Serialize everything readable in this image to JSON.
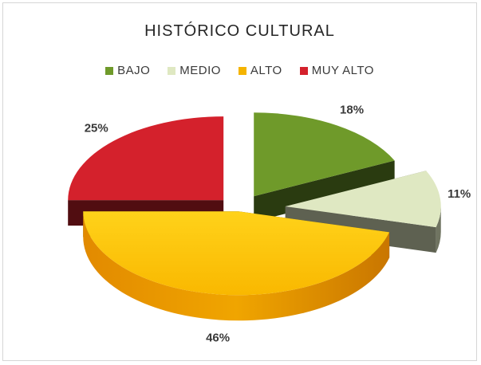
{
  "chart_data": {
    "type": "pie",
    "title": "HISTÓRICO CULTURAL",
    "categories": [
      "BAJO",
      "MEDIO",
      "ALTO",
      "MUY ALTO"
    ],
    "values": [
      18,
      11,
      46,
      25
    ],
    "labels": [
      "18%",
      "11%",
      "46%",
      "25%"
    ],
    "colors": [
      "#6f9a2a",
      "#dfe8c2",
      "#f5b400",
      "#d4212c"
    ],
    "legend_position": "top",
    "style": "3d-exploded"
  }
}
